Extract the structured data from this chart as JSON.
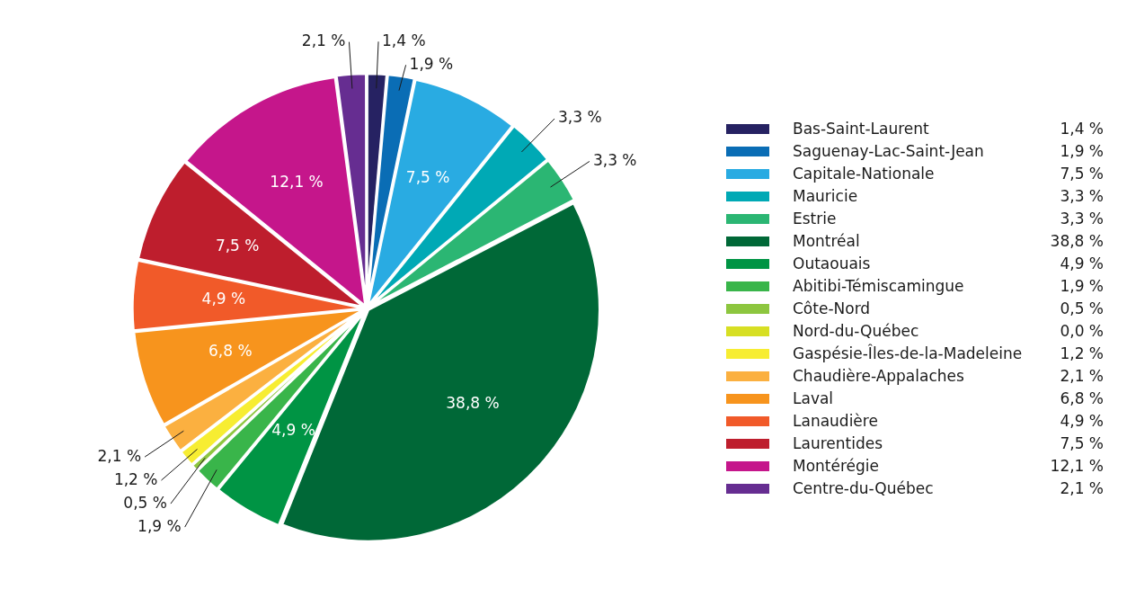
{
  "chart_data": {
    "type": "pie",
    "categories": [
      "Bas-Saint-Laurent",
      "Saguenay-Lac-Saint-Jean",
      "Capitale-Nationale",
      "Mauricie",
      "Estrie",
      "Montréal",
      "Outaouais",
      "Abitibi-Témiscamingue",
      "Côte-Nord",
      "Nord-du-Québec",
      "Gaspésie-Îles-de-la-Madeleine",
      "Chaudière-Appalaches",
      "Laval",
      "Lanaudière",
      "Laurentides",
      "Montérégie",
      "Centre-du-Québec"
    ],
    "values": [
      1.4,
      1.9,
      7.5,
      3.3,
      3.3,
      38.8,
      4.9,
      1.9,
      0.5,
      0.0,
      1.2,
      2.1,
      6.8,
      4.9,
      7.5,
      12.1,
      2.1
    ],
    "value_labels": [
      "1,4 %",
      "1,9 %",
      "7,5 %",
      "3,3 %",
      "3,3 %",
      "38,8 %",
      "4,9 %",
      "1,9 %",
      "0,5 %",
      "0,0 %",
      "1,2 %",
      "2,1 %",
      "6,8 %",
      "4,9 %",
      "7,5 %",
      "12,1 %",
      "2,1 %"
    ],
    "colors": [
      "#262262",
      "#0a6db5",
      "#29abe2",
      "#00a9b5",
      "#2bb673",
      "#006837",
      "#009444",
      "#39b54a",
      "#8dc63f",
      "#d7df23",
      "#f7ed32",
      "#fbb040",
      "#f7941d",
      "#f15a29",
      "#be1e2d",
      "#c5168b",
      "#662d91"
    ],
    "legend": "right"
  }
}
